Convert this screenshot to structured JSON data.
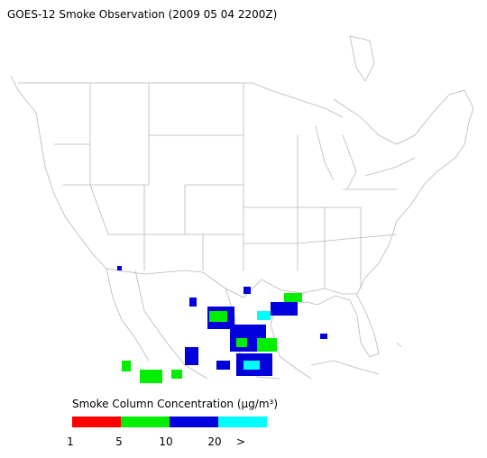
{
  "title": "GOES-12 Smoke Observation (2009 05 04  2200Z)",
  "legend": {
    "title": "Smoke Column Concentration (μg/m³)",
    "colors": [
      "#ff0000",
      "#00ee00",
      "#0000dd",
      "#00ffff"
    ],
    "labels": [
      "1",
      "5",
      "10",
      "20",
      ">"
    ]
  }
}
